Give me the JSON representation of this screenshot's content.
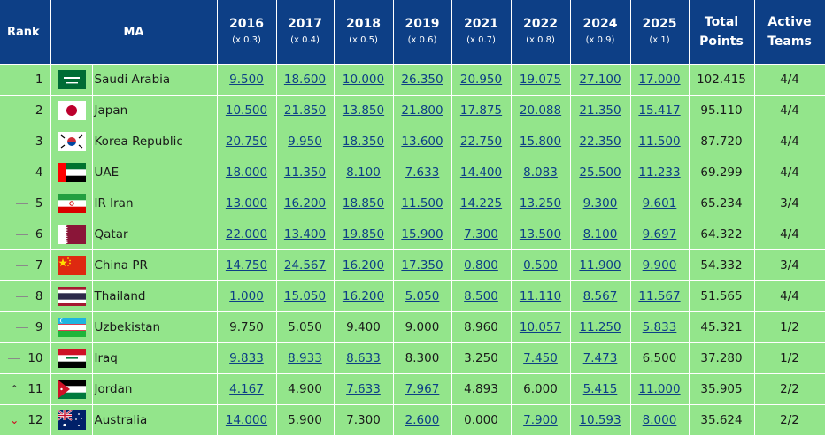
{
  "headers": {
    "rank": "Rank",
    "ma": "MA",
    "years": [
      {
        "year": "2016",
        "mult": "(x 0.3)"
      },
      {
        "year": "2017",
        "mult": "(x 0.4)"
      },
      {
        "year": "2018",
        "mult": "(x 0.5)"
      },
      {
        "year": "2019",
        "mult": "(x 0.6)"
      },
      {
        "year": "2021",
        "mult": "(x 0.7)"
      },
      {
        "year": "2022",
        "mult": "(x 0.8)"
      },
      {
        "year": "2024",
        "mult": "(x 0.9)"
      },
      {
        "year": "2025",
        "mult": "(x 1)"
      }
    ],
    "total_1": "Total",
    "total_2": "Points",
    "active_1": "Active",
    "active_2": "Teams"
  },
  "rows": [
    {
      "rank": "1",
      "trend": "same",
      "flag": "saudi-arabia-flag",
      "country": "Saudi Arabia",
      "scores": [
        "9.500",
        "18.600",
        "10.000",
        "26.350",
        "20.950",
        "19.075",
        "27.100",
        "17.000"
      ],
      "total": "102.415",
      "active": "4/4"
    },
    {
      "rank": "2",
      "trend": "same",
      "flag": "japan-flag",
      "country": "Japan",
      "scores": [
        "10.500",
        "21.850",
        "13.850",
        "21.800",
        "17.875",
        "20.088",
        "21.350",
        "15.417"
      ],
      "total": "95.110",
      "active": "4/4"
    },
    {
      "rank": "3",
      "trend": "same",
      "flag": "korea-republic-flag",
      "country": "Korea Republic",
      "scores": [
        "20.750",
        "9.950",
        "18.350",
        "13.600",
        "22.750",
        "15.800",
        "22.350",
        "11.500"
      ],
      "total": "87.720",
      "active": "4/4"
    },
    {
      "rank": "4",
      "trend": "same",
      "flag": "uae-flag",
      "country": "UAE",
      "scores": [
        "18.000",
        "11.350",
        "8.100",
        "7.633",
        "14.400",
        "8.083",
        "25.500",
        "11.233"
      ],
      "total": "69.299",
      "active": "4/4"
    },
    {
      "rank": "5",
      "trend": "same",
      "flag": "ir-iran-flag",
      "country": "IR Iran",
      "scores": [
        "13.000",
        "16.200",
        "18.850",
        "11.500",
        "14.225",
        "13.250",
        "9.300",
        "9.601"
      ],
      "total": "65.234",
      "active": "3/4"
    },
    {
      "rank": "6",
      "trend": "same",
      "flag": "qatar-flag",
      "country": "Qatar",
      "scores": [
        "22.000",
        "13.400",
        "19.850",
        "15.900",
        "7.300",
        "13.500",
        "8.100",
        "9.697"
      ],
      "total": "64.322",
      "active": "4/4"
    },
    {
      "rank": "7",
      "trend": "same",
      "flag": "china-pr-flag",
      "country": "China PR",
      "scores": [
        "14.750",
        "24.567",
        "16.200",
        "17.350",
        "0.800",
        "0.500",
        "11.900",
        "9.900"
      ],
      "total": "54.332",
      "active": "3/4"
    },
    {
      "rank": "8",
      "trend": "same",
      "flag": "thailand-flag",
      "country": "Thailand",
      "scores": [
        "1.000",
        "15.050",
        "16.200",
        "5.050",
        "8.500",
        "11.110",
        "8.567",
        "11.567"
      ],
      "total": "51.565",
      "active": "4/4"
    },
    {
      "rank": "9",
      "trend": "same",
      "flag": "uzbekistan-flag",
      "country": "Uzbekistan",
      "scores": [
        "9.750",
        "5.050",
        "9.400",
        "9.000",
        "8.960",
        "10.057",
        "11.250",
        "5.833"
      ],
      "total": "45.321",
      "active": "1/2"
    },
    {
      "rank": "10",
      "trend": "same",
      "flag": "iraq-flag",
      "country": "Iraq",
      "scores": [
        "9.833",
        "8.933",
        "8.633",
        "8.300",
        "3.250",
        "7.450",
        "7.473",
        "6.500"
      ],
      "total": "37.280",
      "active": "1/2"
    },
    {
      "rank": "11",
      "trend": "up",
      "flag": "jordan-flag",
      "country": "Jordan",
      "scores": [
        "4.167",
        "4.900",
        "7.633",
        "7.967",
        "4.893",
        "6.000",
        "5.415",
        "11.000"
      ],
      "total": "35.905",
      "active": "2/2"
    },
    {
      "rank": "12",
      "trend": "down",
      "flag": "australia-flag",
      "country": "Australia",
      "scores": [
        "14.000",
        "5.900",
        "7.300",
        "2.600",
        "0.000",
        "7.900",
        "10.593",
        "8.000"
      ],
      "total": "35.624",
      "active": "2/2"
    }
  ],
  "linked_columns_per_row": [
    [
      true,
      true,
      true,
      true,
      true,
      true,
      true,
      true
    ],
    [
      true,
      true,
      true,
      true,
      true,
      true,
      true,
      true
    ],
    [
      true,
      true,
      true,
      true,
      true,
      true,
      true,
      true
    ],
    [
      true,
      true,
      true,
      true,
      true,
      true,
      true,
      true
    ],
    [
      true,
      true,
      true,
      true,
      true,
      true,
      true,
      true
    ],
    [
      true,
      true,
      true,
      true,
      true,
      true,
      true,
      true
    ],
    [
      true,
      true,
      true,
      true,
      true,
      true,
      true,
      true
    ],
    [
      true,
      true,
      true,
      true,
      true,
      true,
      true,
      true
    ],
    [
      false,
      false,
      false,
      false,
      false,
      true,
      true,
      true
    ],
    [
      true,
      true,
      true,
      false,
      false,
      true,
      true,
      false
    ],
    [
      true,
      false,
      true,
      true,
      false,
      false,
      true,
      true
    ],
    [
      true,
      false,
      false,
      true,
      false,
      true,
      true,
      true
    ]
  ],
  "colors": {
    "header_bg": "#0d3f86",
    "row_bg": "#93e58b",
    "link": "#0d3f86",
    "trend_down": "#d0021b"
  }
}
